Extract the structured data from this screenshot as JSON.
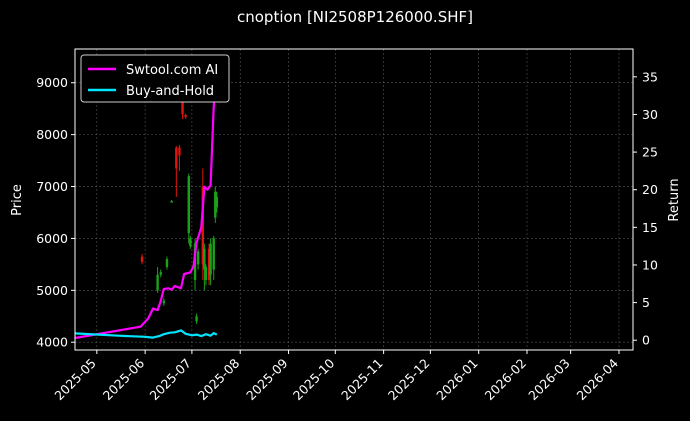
{
  "chart_data": {
    "type": "line",
    "title": "cnoption [NI2508P126000.SHF]",
    "ylabel": "Price",
    "y2label": "Return",
    "x_tick_labels": [
      "2025-05",
      "2025-06",
      "2025-07",
      "2025-08",
      "2025-09",
      "2025-10",
      "2025-11",
      "2025-12",
      "2026-01",
      "2026-02",
      "2026-03",
      "2026-04"
    ],
    "x_ticks": [
      "2025-05-01",
      "2025-06-01",
      "2025-07-01",
      "2025-08-01",
      "2025-09-01",
      "2025-10-01",
      "2025-11-01",
      "2025-12-01",
      "2026-01-01",
      "2026-02-01",
      "2026-03-01",
      "2026-04-01"
    ],
    "xlim": [
      "2025-04-17",
      "2026-04-10"
    ],
    "y_ticks": [
      4000,
      5000,
      6000,
      7000,
      8000,
      9000
    ],
    "ylim": [
      3850,
      9650
    ],
    "y2_ticks": [
      0,
      5,
      10,
      15,
      20,
      25,
      30,
      35
    ],
    "y2lim": [
      -1.3,
      38.7
    ],
    "grid": true,
    "legend": "upper-left",
    "colors": {
      "background": "#000000",
      "strategy": "#ff00ff",
      "buyhold": "#00e5ff",
      "up": "#1aa31a",
      "down": "#e0140c",
      "grid": "#555555",
      "axes": "#ffffff"
    },
    "series": [
      {
        "name": "Swtool.com AI",
        "axis": "right",
        "points": [
          [
            "2025-04-17",
            0.3
          ],
          [
            "2025-05-29",
            1.8
          ],
          [
            "2025-06-03",
            2.9
          ],
          [
            "2025-06-06",
            4.2
          ],
          [
            "2025-06-09",
            4.0
          ],
          [
            "2025-06-11",
            5.2
          ],
          [
            "2025-06-13",
            6.8
          ],
          [
            "2025-06-16",
            6.9
          ],
          [
            "2025-06-18",
            6.7
          ],
          [
            "2025-06-20",
            7.2
          ],
          [
            "2025-06-24",
            6.9
          ],
          [
            "2025-06-26",
            8.8
          ],
          [
            "2025-06-30",
            9.0
          ],
          [
            "2025-07-02",
            9.8
          ],
          [
            "2025-07-04",
            13.0
          ],
          [
            "2025-07-07",
            15.0
          ],
          [
            "2025-07-09",
            20.4
          ],
          [
            "2025-07-11",
            20.0
          ],
          [
            "2025-07-13",
            20.6
          ],
          [
            "2025-07-15",
            31.0
          ],
          [
            "2025-07-17",
            35.5
          ]
        ]
      },
      {
        "name": "Buy-and-Hold",
        "axis": "right",
        "points": [
          [
            "2025-04-17",
            0.9
          ],
          [
            "2025-05-15",
            0.6
          ],
          [
            "2025-06-01",
            0.45
          ],
          [
            "2025-06-06",
            0.35
          ],
          [
            "2025-06-10",
            0.55
          ],
          [
            "2025-06-13",
            0.8
          ],
          [
            "2025-06-17",
            1.0
          ],
          [
            "2025-06-20",
            1.05
          ],
          [
            "2025-06-24",
            1.3
          ],
          [
            "2025-06-27",
            0.85
          ],
          [
            "2025-07-01",
            0.65
          ],
          [
            "2025-07-04",
            0.75
          ],
          [
            "2025-07-07",
            0.55
          ],
          [
            "2025-07-10",
            0.8
          ],
          [
            "2025-07-13",
            0.6
          ],
          [
            "2025-07-15",
            0.95
          ],
          [
            "2025-07-17",
            0.75
          ]
        ]
      }
    ],
    "candles": [
      {
        "date": "2025-05-30",
        "open": 5650,
        "close": 5550,
        "high": 5700,
        "low": 5500
      },
      {
        "date": "2025-06-09",
        "open": 5000,
        "close": 5300,
        "high": 5450,
        "low": 4950
      },
      {
        "date": "2025-06-11",
        "open": 5300,
        "close": 5350,
        "high": 5400,
        "low": 5250
      },
      {
        "date": "2025-06-13",
        "open": 4750,
        "close": 4800,
        "high": 4850,
        "low": 4700
      },
      {
        "date": "2025-06-15",
        "open": 5450,
        "close": 5600,
        "high": 5650,
        "low": 5400
      },
      {
        "date": "2025-06-18",
        "open": 6700,
        "close": 6720,
        "high": 6740,
        "low": 6690
      },
      {
        "date": "2025-06-21",
        "open": 7750,
        "close": 7350,
        "high": 7780,
        "low": 6800
      },
      {
        "date": "2025-06-23",
        "open": 7750,
        "close": 7600,
        "high": 7800,
        "low": 7300
      },
      {
        "date": "2025-06-25",
        "open": 8650,
        "close": 8400,
        "high": 8700,
        "low": 8300
      },
      {
        "date": "2025-06-27",
        "open": 8380,
        "close": 8340,
        "high": 8400,
        "low": 8300
      },
      {
        "date": "2025-06-29",
        "open": 6100,
        "close": 7200,
        "high": 7250,
        "low": 5900
      },
      {
        "date": "2025-06-30",
        "open": 5850,
        "close": 6000,
        "high": 6050,
        "low": 5800
      },
      {
        "date": "2025-07-03",
        "open": 5200,
        "close": 5900,
        "high": 6000,
        "low": 5000
      },
      {
        "date": "2025-07-04",
        "open": 4400,
        "close": 4500,
        "high": 4550,
        "low": 4350
      },
      {
        "date": "2025-07-05",
        "open": 5500,
        "close": 5750,
        "high": 5800,
        "low": 5400
      },
      {
        "date": "2025-07-08",
        "open": 7000,
        "close": 5500,
        "high": 7350,
        "low": 5200
      },
      {
        "date": "2025-07-09",
        "open": 5400,
        "close": 5800,
        "high": 5900,
        "low": 5000
      },
      {
        "date": "2025-07-10",
        "open": 5200,
        "close": 5450,
        "high": 5500,
        "low": 5100
      },
      {
        "date": "2025-07-12",
        "open": 5800,
        "close": 5200,
        "high": 5900,
        "low": 5100
      },
      {
        "date": "2025-07-13",
        "open": 5300,
        "close": 5900,
        "high": 6000,
        "low": 5100
      },
      {
        "date": "2025-07-15",
        "open": 5400,
        "close": 6000,
        "high": 6050,
        "low": 5200
      },
      {
        "date": "2025-07-16",
        "open": 6400,
        "close": 6900,
        "high": 7000,
        "low": 6300
      },
      {
        "date": "2025-07-17",
        "open": 6600,
        "close": 6800,
        "high": 6900,
        "low": 6500
      }
    ]
  }
}
